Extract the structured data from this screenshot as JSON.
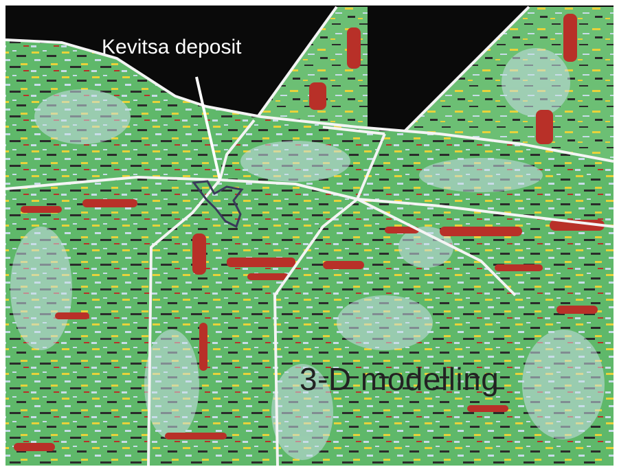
{
  "labels": {
    "deposit": "Kevitsa deposit",
    "modelling": "3-D modelling"
  },
  "colors": {
    "background": "#ffffff",
    "sky": "#0a0a0a",
    "base_green": "#5fb86a",
    "light_blue": "#c8dce8",
    "yellow": "#e8d23a",
    "red": "#b83028",
    "dark": "#2a2a2a",
    "edge": "#f4f4f4"
  },
  "icons": [
    "pointer-line",
    "deposit-outline"
  ]
}
